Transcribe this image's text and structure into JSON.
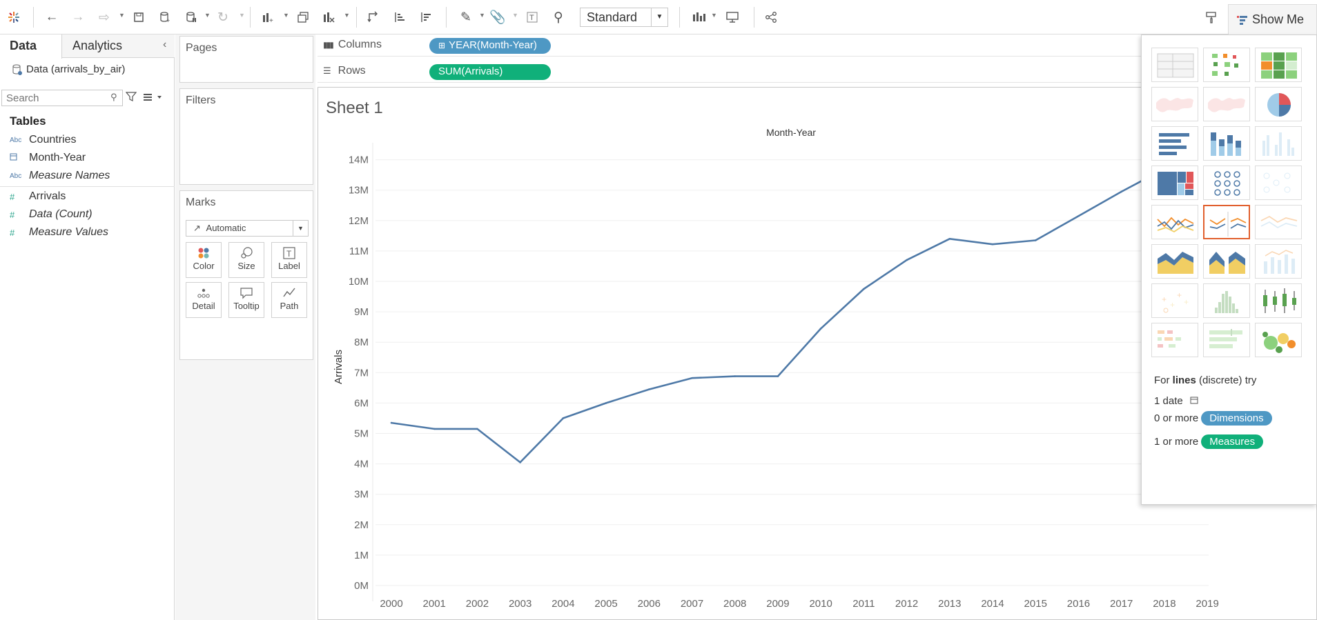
{
  "toolbar": {
    "view_select": "Standard",
    "show_me_label": "Show Me",
    "icons": [
      "tableau-logo-icon",
      "undo-icon",
      "redo-icon",
      "replay-icon",
      "save-icon",
      "new-datasource-icon",
      "pause-updates-icon",
      "refresh-icon",
      "new-worksheet-icon",
      "duplicate-icon",
      "clear-icon",
      "swap-icon",
      "sort-ascending-icon",
      "sort-descending-icon",
      "highlight-icon",
      "group-icon",
      "label-icon",
      "pin-icon",
      "chart-size-icon",
      "presentation-icon",
      "share-icon",
      "brush-icon"
    ]
  },
  "left_panel": {
    "tabs": [
      "Data",
      "Analytics"
    ],
    "datasource": "Data (arrivals_by_air)",
    "search_placeholder": "Search",
    "tables_heading": "Tables",
    "dimensions": [
      {
        "label": "Countries",
        "type": "Abc"
      },
      {
        "label": "Month-Year",
        "type": "date"
      },
      {
        "label": "Measure Names",
        "type": "Abc"
      }
    ],
    "measures": [
      {
        "label": "Arrivals"
      },
      {
        "label": "Data (Count)"
      },
      {
        "label": "Measure Values"
      }
    ]
  },
  "cards": {
    "pages": "Pages",
    "filters": "Filters",
    "marks": "Marks",
    "mark_type": "Automatic",
    "mark_buttons": [
      "Color",
      "Size",
      "Label",
      "Detail",
      "Tooltip",
      "Path"
    ]
  },
  "shelves": {
    "columns_label": "Columns",
    "columns_pill": "YEAR(Month-Year)",
    "rows_label": "Rows",
    "rows_pill": "SUM(Arrivals)"
  },
  "sheet": {
    "title": "Sheet 1"
  },
  "chart_data": {
    "type": "line",
    "title": "Month-Year",
    "xlabel": "",
    "ylabel": "Arrivals",
    "x": [
      "2000",
      "2001",
      "2002",
      "2003",
      "2004",
      "2005",
      "2006",
      "2007",
      "2008",
      "2009",
      "2010",
      "2011",
      "2012",
      "2013",
      "2014",
      "2015",
      "2016",
      "2017",
      "2018",
      "2019"
    ],
    "series": [
      {
        "values": [
          5.35,
          5.15,
          5.15,
          4.05,
          5.5,
          6.0,
          6.45,
          6.82,
          6.88,
          6.88,
          8.45,
          9.75,
          10.7,
          11.4,
          11.22,
          11.35,
          12.15,
          12.95,
          13.7,
          null
        ]
      }
    ],
    "y_ticks": [
      "0M",
      "1M",
      "2M",
      "3M",
      "4M",
      "5M",
      "6M",
      "7M",
      "8M",
      "9M",
      "10M",
      "11M",
      "12M",
      "13M",
      "14M"
    ],
    "ylim": [
      0,
      14
    ],
    "line_color": "#4e79a7",
    "grid": true
  },
  "show_me": {
    "thumbnails": [
      "text-table",
      "heat-map",
      "highlight-table",
      "symbol-map",
      "filled-map",
      "pie-chart",
      "horizontal-bars",
      "stacked-bars",
      "side-by-side-bars",
      "treemap",
      "circle-view",
      "side-by-side-circles",
      "continuous-lines",
      "discrete-lines",
      "dual-lines",
      "area-continuous",
      "area-discrete",
      "dual-combination",
      "scatter-plot",
      "histogram",
      "box-and-whisker",
      "gantt",
      "bullet-graph",
      "packed-bubbles"
    ],
    "selected": "discrete-lines",
    "hint_prefix": "For",
    "hint_bold": "lines",
    "hint_suffix": "(discrete) try",
    "req1": "1 date",
    "req2_prefix": "0 or more",
    "req2_badge": "Dimensions",
    "req3_prefix": "1 or more",
    "req3_badge": "Measures",
    "dimension_color": "#4e98c4",
    "measure_color": "#10b07a"
  }
}
